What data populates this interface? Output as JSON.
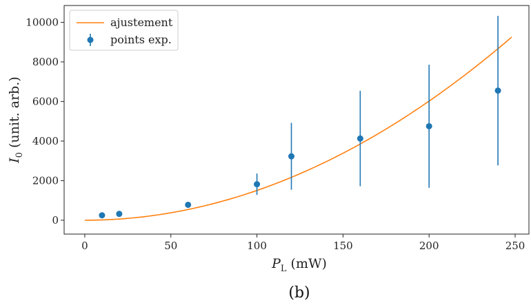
{
  "chart_data": {
    "type": "scatter",
    "xlabel_main": "P",
    "xlabel_sub": "L",
    "xlabel_unit": " (mW)",
    "ylabel_main": "I",
    "ylabel_sub": "0",
    "ylabel_unit": " (unit. arb.)",
    "caption": "(b)",
    "xlim": [
      -12,
      258
    ],
    "ylim": [
      -700,
      10850
    ],
    "xticks": [
      0,
      50,
      100,
      150,
      200,
      250
    ],
    "yticks": [
      0,
      2000,
      4000,
      6000,
      8000,
      10000
    ],
    "grid": false,
    "legend_position": "top-left",
    "series": [
      {
        "name": "ajustement",
        "kind": "line",
        "color": "#ff7f0e",
        "model": "quadratic",
        "coefficient": 0.1505,
        "x_range": [
          0,
          248
        ]
      },
      {
        "name": "points exp.",
        "kind": "errorbar",
        "color": "#1f77b4",
        "points": [
          {
            "x": 10,
            "y": 250,
            "err": 0
          },
          {
            "x": 20,
            "y": 320,
            "err": 0
          },
          {
            "x": 60,
            "y": 780,
            "err": 0
          },
          {
            "x": 100,
            "y": 1820,
            "err": 540
          },
          {
            "x": 120,
            "y": 3230,
            "err": 1690
          },
          {
            "x": 160,
            "y": 4130,
            "err": 2410
          },
          {
            "x": 200,
            "y": 4750,
            "err": 3110
          },
          {
            "x": 240,
            "y": 6550,
            "err": 3780
          }
        ]
      }
    ]
  }
}
